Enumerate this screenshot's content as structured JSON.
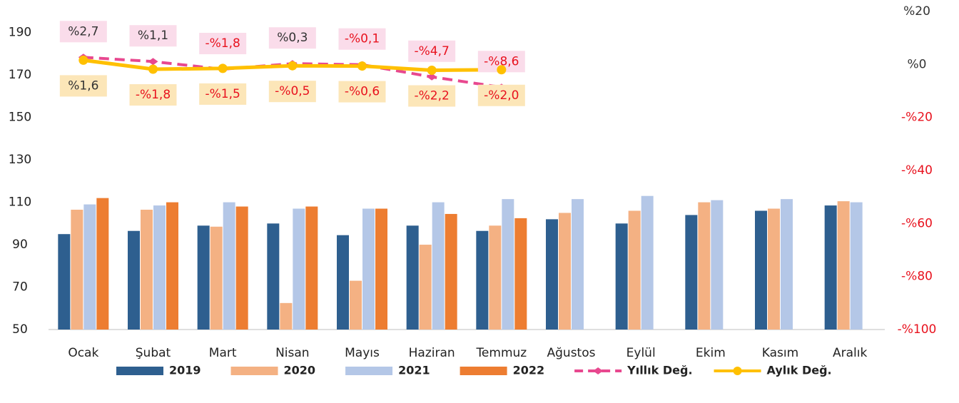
{
  "chart_data": {
    "type": "bar-line",
    "categories": [
      "Ocak",
      "Şubat",
      "Mart",
      "Nisan",
      "Mayıs",
      "Haziran",
      "Temmuz",
      "Ağustos",
      "Eylül",
      "Ekim",
      "Kasım",
      "Aralık"
    ],
    "series": [
      {
        "name": "2019",
        "type": "bar",
        "color": "#2e5f8f",
        "values": [
          95,
          96.5,
          99,
          100,
          94.5,
          99,
          96.5,
          102,
          100,
          104,
          106,
          108.5
        ]
      },
      {
        "name": "2020",
        "type": "bar",
        "color": "#f4b183",
        "values": [
          106.5,
          106.5,
          98.5,
          62.5,
          73,
          90,
          99,
          105,
          106,
          110,
          107,
          110.5
        ]
      },
      {
        "name": "2021",
        "type": "bar",
        "color": "#b4c7e7",
        "values": [
          109,
          108.5,
          110,
          107,
          107,
          110,
          111.5,
          111.5,
          113,
          111,
          111.5,
          110
        ]
      },
      {
        "name": "2022",
        "type": "bar",
        "color": "#ed7d31",
        "values": [
          112,
          110,
          108,
          108,
          107,
          104.5,
          102.5,
          null,
          null,
          null,
          null,
          null
        ]
      },
      {
        "name": "Yıllık Değ.",
        "type": "line",
        "axis": "y2",
        "color": "#e8488f",
        "dashed": true,
        "values": [
          2.7,
          1.1,
          -1.8,
          0.3,
          -0.1,
          -4.7,
          -8.6,
          null,
          null,
          null,
          null,
          null
        ],
        "value_labels": [
          "%2,7",
          "%1,1",
          "-%1,8",
          "%0,3",
          "-%0,1",
          "-%4,7",
          "-%8,6",
          null,
          null,
          null,
          null,
          null
        ]
      },
      {
        "name": "Aylık Değ.",
        "type": "line",
        "axis": "y2",
        "color": "#ffc000",
        "dashed": false,
        "values": [
          1.6,
          -1.8,
          -1.5,
          -0.5,
          -0.6,
          -2.2,
          -2.0,
          null,
          null,
          null,
          null,
          null
        ],
        "value_labels": [
          "%1,6",
          "-%1,8",
          "-%1,5",
          "-%0,5",
          "-%0,6",
          "-%2,2",
          "-%2,0",
          null,
          null,
          null,
          null,
          null
        ]
      }
    ],
    "ylim": [
      50,
      200
    ],
    "yticks": [
      50,
      70,
      90,
      110,
      130,
      150,
      170,
      190
    ],
    "y2lim": [
      -100,
      20
    ],
    "y2ticks": [
      {
        "value": -100,
        "label": "-%100"
      },
      {
        "value": -80,
        "label": "-%80"
      },
      {
        "value": -60,
        "label": "-%60"
      },
      {
        "value": -40,
        "label": "-%40"
      },
      {
        "value": -20,
        "label": "-%20"
      },
      {
        "value": 0,
        "label": "%0"
      },
      {
        "value": 20,
        "label": "%20"
      }
    ],
    "legend": "bottom"
  }
}
